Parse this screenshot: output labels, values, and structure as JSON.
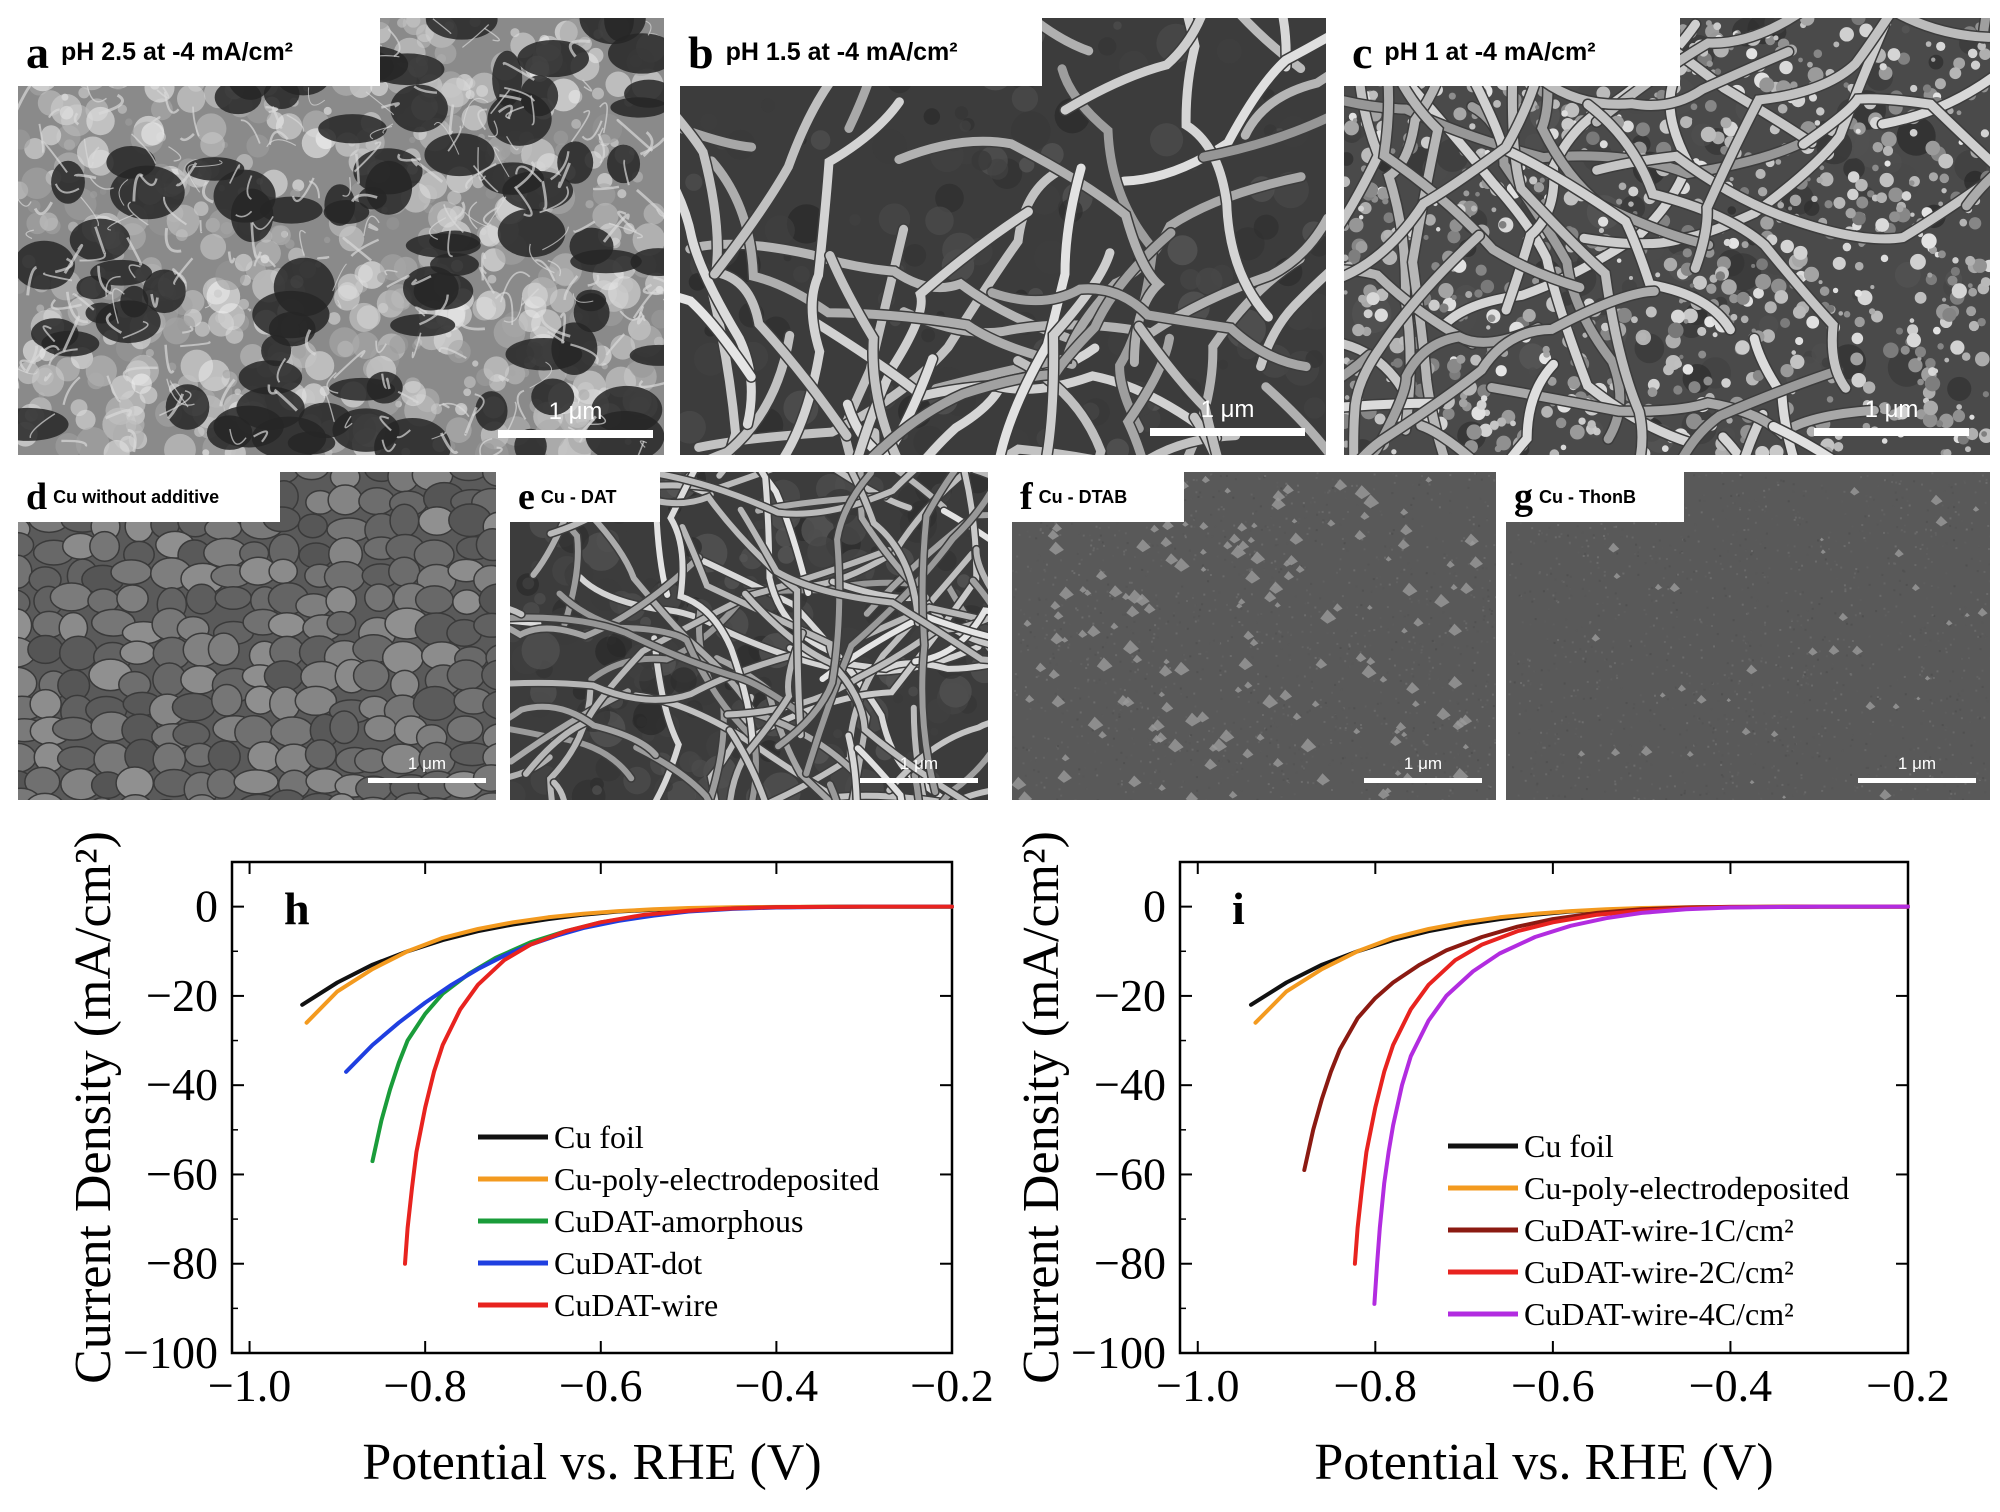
{
  "sem_panels": [
    {
      "letter": "a",
      "condition": "pH 2.5 at -4 mA/cm²",
      "scale": "1 μm",
      "texture": "porous"
    },
    {
      "letter": "b",
      "condition": "pH 1.5 at -4 mA/cm²",
      "scale": "1 μm",
      "texture": "wires"
    },
    {
      "letter": "c",
      "condition": "pH 1 at -4 mA/cm²",
      "scale": "1 μm",
      "texture": "wires-particles"
    },
    {
      "letter": "d",
      "condition": "Cu without additive",
      "scale": "1 μm",
      "texture": "grains"
    },
    {
      "letter": "e",
      "condition": "Cu - DAT",
      "scale": "1 μm",
      "texture": "wires"
    },
    {
      "letter": "f",
      "condition": "Cu - DTAB",
      "scale": "1 μm",
      "texture": "flat"
    },
    {
      "letter": "g",
      "condition": "Cu - ThonB",
      "scale": "1 μm",
      "texture": "flat-fine"
    }
  ],
  "chart_data": [
    {
      "type": "line",
      "panel": "h",
      "xlabel": "Potential vs. RHE (V)",
      "ylabel": "Current Density (mA/cm²)",
      "xlim": [
        -1.02,
        -0.2
      ],
      "ylim": [
        -100,
        10
      ],
      "xticks": [
        -1.0,
        -0.8,
        -0.6,
        -0.4,
        -0.2
      ],
      "xtick_labels": [
        "−1.0",
        "−0.8",
        "−0.6",
        "−0.4",
        "−0.2"
      ],
      "yticks": [
        0,
        -20,
        -40,
        -60,
        -80,
        -100
      ],
      "ytick_labels": [
        "0",
        "−20",
        "−40",
        "−60",
        "−80",
        "−100"
      ],
      "legend_position": "lower-right",
      "series": [
        {
          "name": "Cu foil",
          "color": "#111111",
          "x": [
            -0.94,
            -0.9,
            -0.86,
            -0.82,
            -0.78,
            -0.74,
            -0.7,
            -0.66,
            -0.62,
            -0.58,
            -0.54,
            -0.5,
            -0.45,
            -0.4,
            -0.3,
            -0.2
          ],
          "y": [
            -22,
            -17,
            -13,
            -10,
            -7.5,
            -5.5,
            -4,
            -2.8,
            -1.8,
            -1.1,
            -0.7,
            -0.4,
            -0.2,
            -0.1,
            0,
            0
          ]
        },
        {
          "name": "Cu-poly-electrodeposited",
          "color": "#f39a1f",
          "x": [
            -0.935,
            -0.9,
            -0.86,
            -0.82,
            -0.78,
            -0.74,
            -0.7,
            -0.66,
            -0.62,
            -0.58,
            -0.54,
            -0.5,
            -0.45,
            -0.4,
            -0.3,
            -0.2
          ],
          "y": [
            -26,
            -19,
            -14,
            -10,
            -7,
            -5,
            -3.5,
            -2.4,
            -1.6,
            -1,
            -0.6,
            -0.3,
            -0.15,
            -0.05,
            0,
            0
          ]
        },
        {
          "name": "CuDAT-amorphous",
          "color": "#1a9c3a",
          "x": [
            -0.86,
            -0.85,
            -0.84,
            -0.83,
            -0.82,
            -0.8,
            -0.78,
            -0.75,
            -0.72,
            -0.68,
            -0.64,
            -0.6,
            -0.55,
            -0.5,
            -0.45,
            -0.4,
            -0.3,
            -0.2
          ],
          "y": [
            -57,
            -48,
            -41,
            -35,
            -30,
            -24,
            -19.5,
            -15,
            -11.5,
            -8,
            -5.5,
            -3.5,
            -2,
            -1,
            -0.4,
            -0.1,
            0,
            0
          ]
        },
        {
          "name": "CuDAT-dot",
          "color": "#1f3fe0",
          "x": [
            -0.89,
            -0.86,
            -0.83,
            -0.8,
            -0.77,
            -0.74,
            -0.71,
            -0.68,
            -0.65,
            -0.62,
            -0.58,
            -0.54,
            -0.5,
            -0.45,
            -0.4,
            -0.3,
            -0.2
          ],
          "y": [
            -37,
            -31,
            -26,
            -21.5,
            -17.5,
            -14,
            -11,
            -8.5,
            -6.5,
            -4.8,
            -3.2,
            -2,
            -1.1,
            -0.5,
            -0.2,
            0,
            0
          ]
        },
        {
          "name": "CuDAT-wire",
          "color": "#e8231f",
          "x": [
            -0.823,
            -0.82,
            -0.815,
            -0.81,
            -0.8,
            -0.79,
            -0.78,
            -0.76,
            -0.74,
            -0.71,
            -0.68,
            -0.64,
            -0.6,
            -0.55,
            -0.5,
            -0.45,
            -0.4,
            -0.3,
            -0.2
          ],
          "y": [
            -80,
            -72,
            -63,
            -55,
            -45,
            -37,
            -31,
            -23,
            -17.5,
            -12,
            -8.5,
            -5.5,
            -3.5,
            -1.8,
            -0.9,
            -0.4,
            -0.1,
            0,
            0
          ]
        }
      ]
    },
    {
      "type": "line",
      "panel": "i",
      "xlabel": "Potential vs. RHE (V)",
      "ylabel": "Current Density (mA/cm²)",
      "xlim": [
        -1.02,
        -0.2
      ],
      "ylim": [
        -100,
        10
      ],
      "xticks": [
        -1.0,
        -0.8,
        -0.6,
        -0.4,
        -0.2
      ],
      "xtick_labels": [
        "−1.0",
        "−0.8",
        "−0.6",
        "−0.4",
        "−0.2"
      ],
      "yticks": [
        0,
        -20,
        -40,
        -60,
        -80,
        -100
      ],
      "ytick_labels": [
        "0",
        "−20",
        "−40",
        "−60",
        "−80",
        "−100"
      ],
      "legend_position": "lower-right",
      "series": [
        {
          "name": "Cu foil",
          "color": "#111111",
          "x": [
            -0.94,
            -0.9,
            -0.86,
            -0.82,
            -0.78,
            -0.74,
            -0.7,
            -0.66,
            -0.62,
            -0.58,
            -0.54,
            -0.5,
            -0.45,
            -0.4,
            -0.3,
            -0.2
          ],
          "y": [
            -22,
            -17,
            -13,
            -10,
            -7.5,
            -5.5,
            -4,
            -2.8,
            -1.8,
            -1.1,
            -0.7,
            -0.4,
            -0.2,
            -0.1,
            0,
            0
          ]
        },
        {
          "name": "Cu-poly-electrodeposited",
          "color": "#f39a1f",
          "x": [
            -0.935,
            -0.9,
            -0.86,
            -0.82,
            -0.78,
            -0.74,
            -0.7,
            -0.66,
            -0.62,
            -0.58,
            -0.54,
            -0.5,
            -0.45,
            -0.4,
            -0.3,
            -0.2
          ],
          "y": [
            -26,
            -19,
            -14,
            -10,
            -7,
            -5,
            -3.5,
            -2.4,
            -1.6,
            -1,
            -0.6,
            -0.3,
            -0.15,
            -0.05,
            0,
            0
          ]
        },
        {
          "name": "CuDAT-wire-1C/cm²",
          "color": "#8b1a12",
          "x": [
            -0.88,
            -0.87,
            -0.86,
            -0.85,
            -0.84,
            -0.82,
            -0.8,
            -0.78,
            -0.75,
            -0.72,
            -0.68,
            -0.64,
            -0.6,
            -0.55,
            -0.5,
            -0.45,
            -0.4,
            -0.3,
            -0.2
          ],
          "y": [
            -59,
            -50,
            -43,
            -37,
            -32,
            -25,
            -20.5,
            -17,
            -13,
            -9.8,
            -6.8,
            -4.5,
            -2.8,
            -1.4,
            -0.6,
            -0.2,
            -0.05,
            0,
            0
          ]
        },
        {
          "name": "CuDAT-wire-2C/cm²",
          "color": "#e8231f",
          "x": [
            -0.823,
            -0.82,
            -0.815,
            -0.81,
            -0.8,
            -0.79,
            -0.78,
            -0.76,
            -0.74,
            -0.71,
            -0.68,
            -0.64,
            -0.6,
            -0.55,
            -0.5,
            -0.45,
            -0.4,
            -0.3,
            -0.2
          ],
          "y": [
            -80,
            -72,
            -63,
            -55,
            -45,
            -37,
            -31,
            -23,
            -17.5,
            -12,
            -8.5,
            -5.5,
            -3.5,
            -1.8,
            -0.9,
            -0.4,
            -0.1,
            0,
            0
          ]
        },
        {
          "name": "CuDAT-wire-4C/cm²",
          "color": "#b22ce0",
          "x": [
            -0.801,
            -0.798,
            -0.795,
            -0.79,
            -0.785,
            -0.78,
            -0.77,
            -0.76,
            -0.74,
            -0.72,
            -0.69,
            -0.66,
            -0.62,
            -0.58,
            -0.54,
            -0.5,
            -0.45,
            -0.4,
            -0.3,
            -0.2
          ],
          "y": [
            -89,
            -80,
            -72,
            -62,
            -55,
            -49,
            -40,
            -33.5,
            -25.5,
            -20,
            -14.5,
            -10.5,
            -6.8,
            -4.3,
            -2.6,
            -1.4,
            -0.6,
            -0.2,
            0,
            0
          ]
        }
      ]
    }
  ]
}
